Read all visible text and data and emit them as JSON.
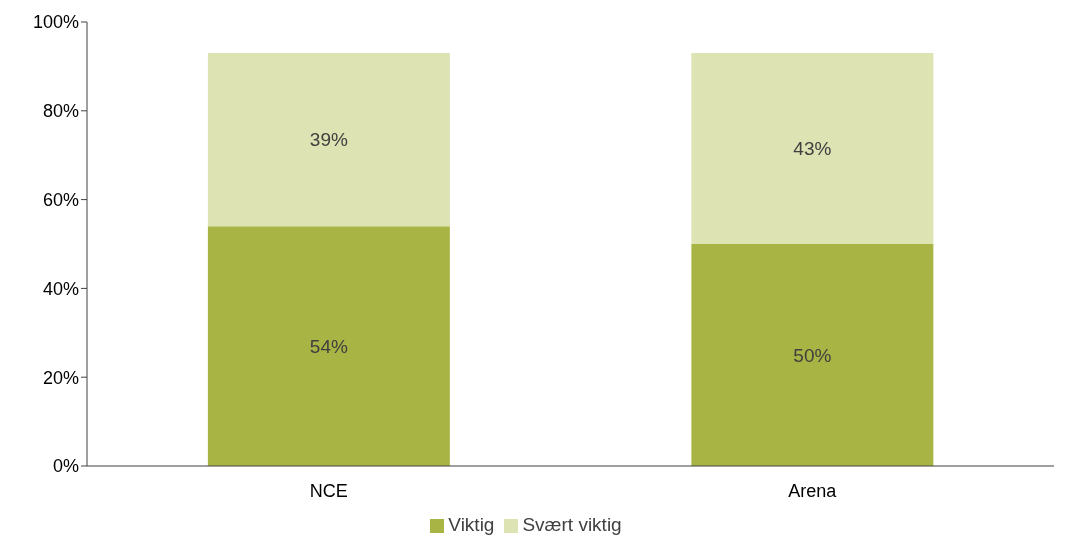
{
  "chart_data": {
    "type": "bar",
    "stacked": true,
    "categories": [
      "NCE",
      "Arena"
    ],
    "series": [
      {
        "name": "Viktig",
        "color": "#a8b444",
        "values": [
          54,
          50
        ],
        "value_labels": [
          "54%",
          "50%"
        ]
      },
      {
        "name": "Svært viktig",
        "color": "#dde3b3",
        "values": [
          39,
          43
        ],
        "value_labels": [
          "39%",
          "43%"
        ]
      }
    ],
    "ylim": [
      0,
      100
    ],
    "yticks": [
      {
        "value": 0,
        "label": "0%"
      },
      {
        "value": 20,
        "label": "20%"
      },
      {
        "value": 40,
        "label": "40%"
      },
      {
        "value": 60,
        "label": "60%"
      },
      {
        "value": 80,
        "label": "80%"
      },
      {
        "value": 100,
        "label": "100%"
      }
    ],
    "grid": false,
    "legend": "bottom"
  }
}
